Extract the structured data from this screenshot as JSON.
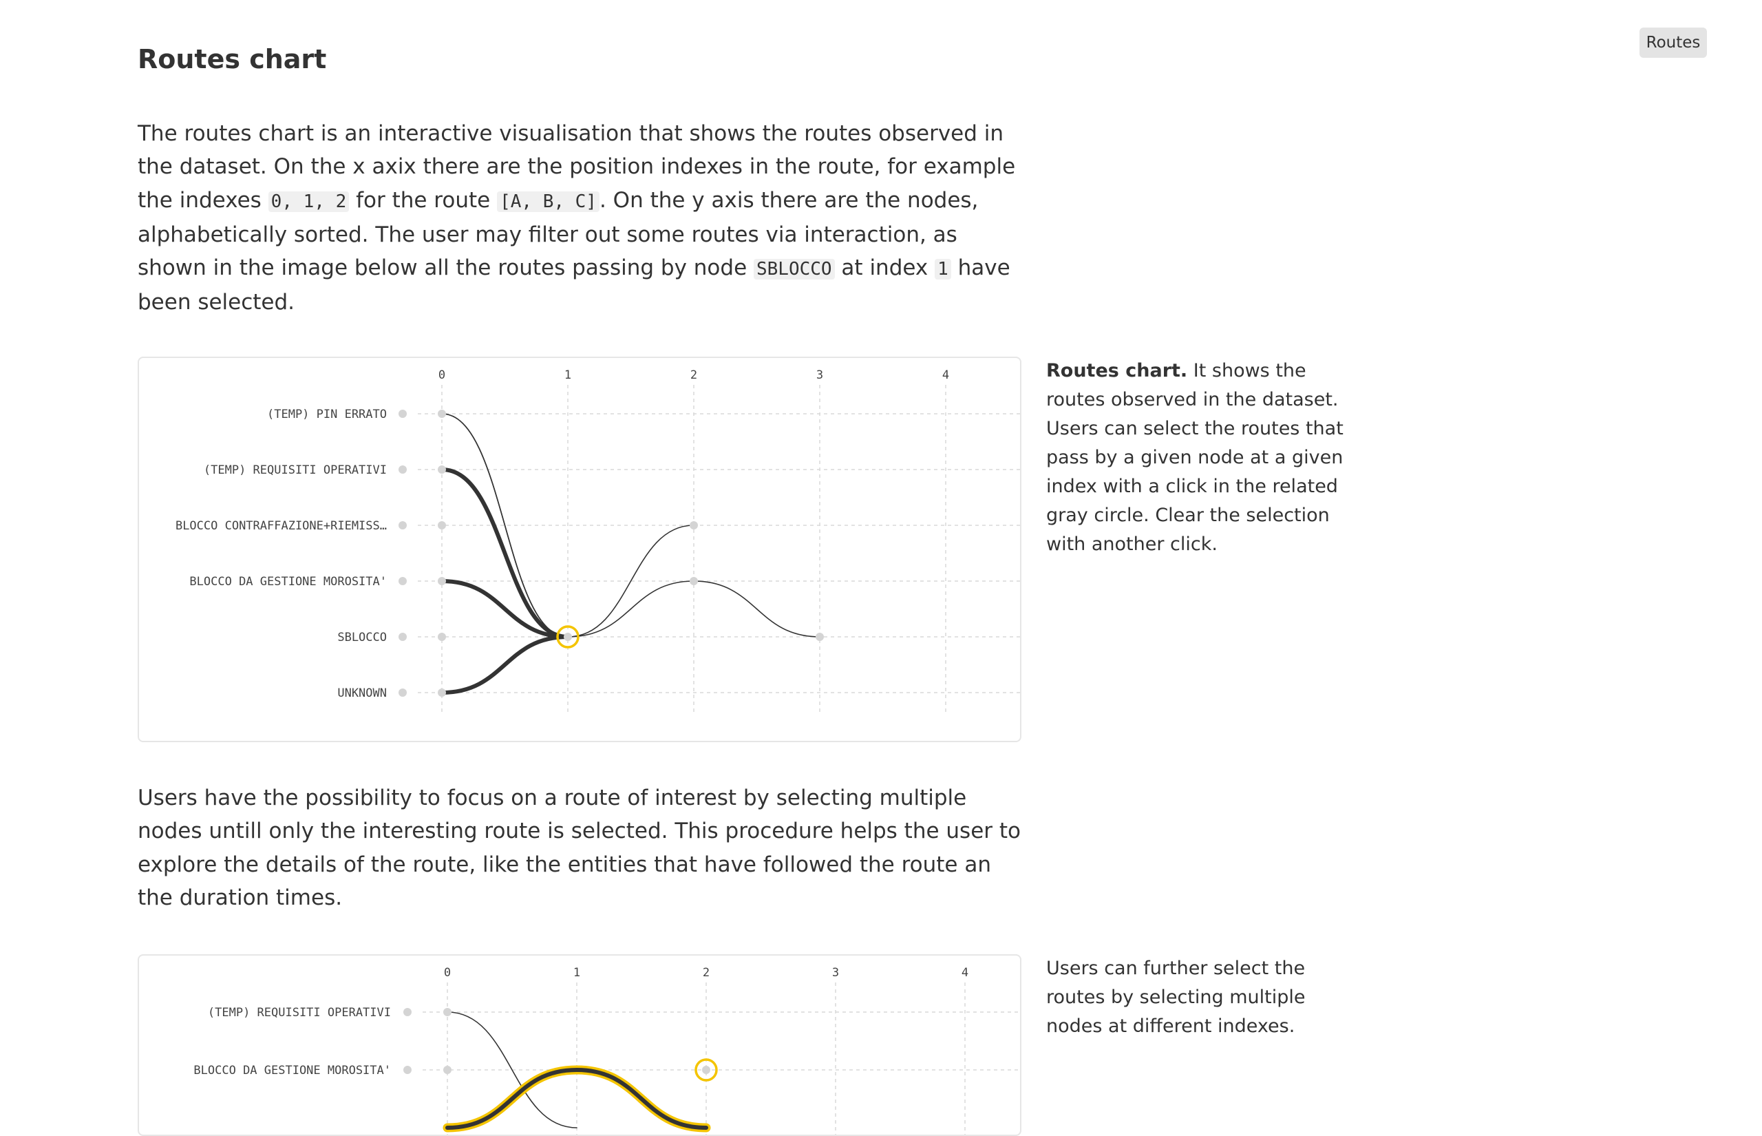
{
  "top_badge": "Routes",
  "title": "Routes chart",
  "para1": {
    "t1": "The routes chart is an interactive visualisation that shows the routes observed in the dataset. On the x axix there are the position indexes in the route, for example the indexes ",
    "c1": "0, 1, 2",
    "t2": " for the route ",
    "c2": "[A, B, C]",
    "t3": ". On the y axis there are the nodes, alphabetically sorted. The user may filter out some routes via interaction, as shown in the image below all the routes passing by node ",
    "c3": "SBLOCCO",
    "t4": " at index ",
    "c4": "1",
    "t5": " have been selected."
  },
  "caption1": {
    "strong": "Routes chart.",
    "text": " It shows the routes observed in the dataset. Users can select the routes that pass by a given node at a given index with a click in the related gray circle. Clear the selection with another click."
  },
  "para2": "Users have the possibility to focus on a route of interest by selecting multiple nodes untill only the interesting route is selected. This procedure helps the user to explore the details of the route, like the entities that have followed the route an the duration times.",
  "caption2": "Users can further select the routes by selecting multiple nodes at different indexes.",
  "colors": {
    "highlight": "#f4c400",
    "route": "#333333",
    "grid": "#d9d9d9",
    "node": "#d4d4d4"
  },
  "chart_data": [
    {
      "type": "routes",
      "indexes": [
        "0",
        "1",
        "2",
        "3",
        "4"
      ],
      "nodes": [
        "(TEMP) PIN ERRATO",
        "(TEMP) REQUISITI OPERATIVI",
        "BLOCCO CONTRAFFAZIONE+RIEMISS…",
        "BLOCCO DA GESTIONE MOROSITA'",
        "SBLOCCO",
        "UNKNOWN"
      ],
      "node_circles": [
        [
          0,
          0
        ],
        [
          0,
          1
        ],
        [
          0,
          2
        ],
        [
          0,
          3
        ],
        [
          0,
          4
        ],
        [
          0,
          5
        ],
        [
          1,
          4
        ],
        [
          2,
          2
        ],
        [
          2,
          3
        ],
        [
          3,
          4
        ]
      ],
      "selected_node": [
        1,
        4
      ],
      "routes": [
        {
          "path": [
            0,
            4,
            2
          ],
          "weight": 1
        },
        {
          "path": [
            0,
            4,
            3,
            4
          ],
          "weight": 1
        },
        {
          "path": [
            1,
            4
          ],
          "weight": 3
        },
        {
          "path": [
            3,
            4
          ],
          "weight": 3
        },
        {
          "path": [
            5,
            4
          ],
          "weight": 3
        }
      ]
    },
    {
      "type": "routes",
      "indexes": [
        "0",
        "1",
        "2",
        "3",
        "4"
      ],
      "nodes": [
        "(TEMP) REQUISITI OPERATIVI",
        "BLOCCO DA GESTIONE MOROSITA'"
      ],
      "node_circles": [
        [
          0,
          0
        ],
        [
          0,
          1
        ],
        [
          2,
          1
        ]
      ],
      "selected_node": [
        2,
        1
      ],
      "routes": [
        {
          "path": [
            0,
            2
          ],
          "weight": 1
        },
        {
          "path": [
            2,
            1,
            2
          ],
          "weight": 2,
          "highlight": true
        }
      ]
    }
  ]
}
